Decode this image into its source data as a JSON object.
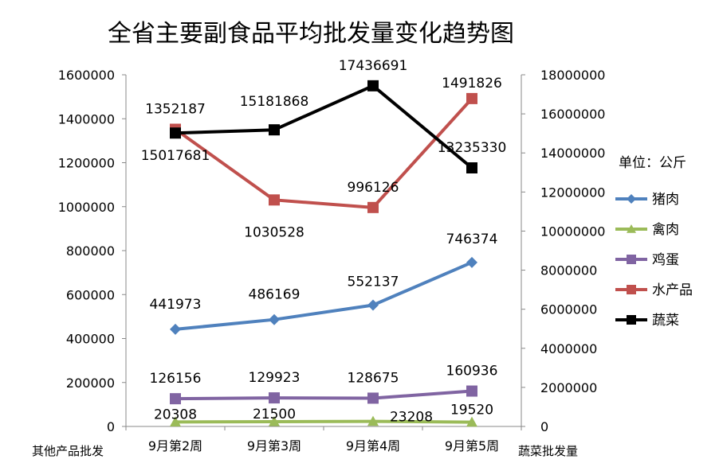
{
  "chart_data": {
    "type": "line",
    "title": "全省主要副食品平均批发量变化趋势图",
    "unit_note": "单位：公斤",
    "xlabel": "",
    "y_left_label": "其他产品批发",
    "y_right_label": "蔬菜批发量",
    "categories": [
      "9月第2周",
      "9月第3周",
      "9月第4周",
      "9月第5周"
    ],
    "y_left_ticks": [
      "0",
      "200000",
      "400000",
      "600000",
      "800000",
      "1000000",
      "1200000",
      "1400000",
      "1600000"
    ],
    "y_right_ticks": [
      "0",
      "2000000",
      "4000000",
      "6000000",
      "8000000",
      "10000000",
      "12000000",
      "14000000",
      "16000000",
      "18000000"
    ],
    "ylim_left": [
      0,
      1600000
    ],
    "ylim_right": [
      0,
      18000000
    ],
    "grid": false,
    "legend_position": "right",
    "series": [
      {
        "name": "猪肉",
        "axis": "left",
        "color": "#4F81BD",
        "marker": "diamond",
        "values": [
          441973,
          486169,
          552137,
          746374
        ],
        "labels": [
          "441973",
          "486169",
          "552137",
          "746374"
        ]
      },
      {
        "name": "禽肉",
        "axis": "left",
        "color": "#9BBB59",
        "marker": "triangle",
        "values": [
          20308,
          21500,
          23208,
          19520
        ],
        "labels": [
          "20308",
          "21500",
          "23208",
          "19520"
        ]
      },
      {
        "name": "鸡蛋",
        "axis": "left",
        "color": "#8064A2",
        "marker": "square",
        "values": [
          126156,
          129923,
          128675,
          160936
        ],
        "labels": [
          "126156",
          "129923",
          "128675",
          "160936"
        ]
      },
      {
        "name": "水产品",
        "axis": "left",
        "color": "#C0504D",
        "marker": "square",
        "values": [
          1352187,
          1030528,
          996126,
          1491826
        ],
        "labels": [
          "1352187",
          "1030528",
          "996126",
          "1491826"
        ]
      },
      {
        "name": "蔬菜",
        "axis": "right",
        "color": "#000000",
        "marker": "square",
        "values": [
          15017681,
          15181868,
          17436691,
          13235330
        ],
        "labels": [
          "15017681",
          "15181868",
          "17436691",
          "13235330"
        ]
      }
    ]
  }
}
